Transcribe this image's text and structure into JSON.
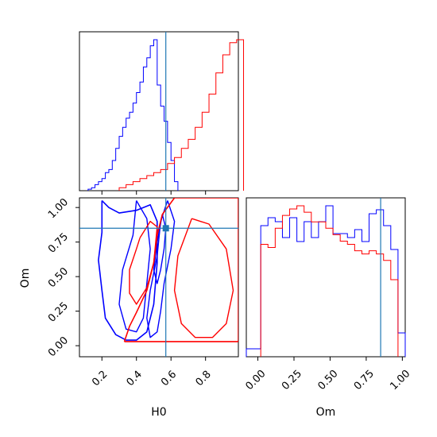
{
  "chart_data": {
    "type": "corner",
    "parameters": [
      "H0",
      "Om"
    ],
    "truth": {
      "H0": 0.57,
      "Om": 0.85
    },
    "colors": {
      "series_a": "#ff0000",
      "series_b": "#0000ff",
      "truth": "#1f77b4"
    },
    "panels": {
      "h0_hist": {
        "type": "histogram",
        "xlim": [
          0.07,
          0.99
        ],
        "x_ticks": [
          0.2,
          0.4,
          0.6,
          0.8
        ],
        "tick_labels_shown": false,
        "series": [
          {
            "color": "#0000ff",
            "bins": [
              0.12,
              0.14,
              0.16,
              0.18,
              0.2,
              0.22,
              0.24,
              0.26,
              0.28,
              0.3,
              0.32,
              0.34,
              0.36,
              0.38,
              0.4,
              0.42,
              0.44,
              0.46,
              0.48,
              0.5,
              0.52,
              0.54,
              0.56,
              0.58,
              0.6,
              0.62
            ],
            "counts": [
              1,
              2,
              4,
              6,
              8,
              12,
              14,
              20,
              28,
              36,
              42,
              48,
              52,
              58,
              65,
              72,
              82,
              88,
              96,
              100,
              70,
              56,
              46,
              32,
              20,
              6
            ]
          },
          {
            "color": "#ff0000",
            "bins": [
              0.3,
              0.34,
              0.38,
              0.42,
              0.46,
              0.5,
              0.54,
              0.58,
              0.62,
              0.66,
              0.7,
              0.74,
              0.78,
              0.82,
              0.86,
              0.9,
              0.94,
              0.98
            ],
            "counts": [
              2,
              4,
              6,
              8,
              10,
              12,
              14,
              18,
              22,
              28,
              34,
              42,
              52,
              64,
              78,
              90,
              98,
              100
            ]
          }
        ]
      },
      "om_hist": {
        "type": "histogram",
        "xlim": [
          -0.08,
          1.02
        ],
        "x_ticks": [
          0.0,
          0.25,
          0.5,
          0.75,
          1.0
        ],
        "x_tick_labels": [
          "0.00",
          "0.25",
          "0.50",
          "0.75",
          "1.00"
        ],
        "xlabel": "Om",
        "series": [
          {
            "color": "#0000ff",
            "bins": [
              -0.08,
              -0.03,
              0.02,
              0.07,
              0.12,
              0.17,
              0.22,
              0.27,
              0.32,
              0.37,
              0.42,
              0.47,
              0.52,
              0.57,
              0.62,
              0.67,
              0.72,
              0.77,
              0.82,
              0.87,
              0.92,
              0.97
            ],
            "counts": [
              4,
              4,
              66,
              70,
              68,
              60,
              70,
              58,
              68,
              60,
              68,
              76,
              62,
              62,
              60,
              64,
              58,
              72,
              74,
              66,
              54,
              12
            ]
          },
          {
            "color": "#ff0000",
            "bins": [
              0.02,
              0.07,
              0.12,
              0.17,
              0.22,
              0.27,
              0.32,
              0.37,
              0.42,
              0.47,
              0.52,
              0.57,
              0.62,
              0.67,
              0.72,
              0.77,
              0.82,
              0.87,
              0.92
            ],
            "counts": [
              70,
              68,
              80,
              88,
              92,
              94,
              90,
              84,
              84,
              80,
              76,
              72,
              70,
              66,
              64,
              66,
              64,
              60,
              48
            ]
          }
        ]
      },
      "joint": {
        "type": "contour",
        "xlim": [
          0.07,
          0.99
        ],
        "ylim": [
          -0.08,
          1.07
        ],
        "x_ticks": [
          0.2,
          0.4,
          0.6,
          0.8
        ],
        "x_tick_labels": [
          "0.2",
          "0.4",
          "0.6",
          "0.8"
        ],
        "y_ticks": [
          0.0,
          0.25,
          0.5,
          0.75,
          1.0
        ],
        "y_tick_labels": [
          "0.00",
          "0.25",
          "0.50",
          "0.75",
          "1.00"
        ],
        "xlabel": "H0",
        "ylabel": "Om",
        "contours": [
          {
            "color": "#0000ff",
            "level": "outer",
            "points": [
              [
                0.2,
                1.05
              ],
              [
                0.24,
                1.0
              ],
              [
                0.3,
                0.96
              ],
              [
                0.4,
                0.98
              ],
              [
                0.48,
                1.02
              ],
              [
                0.52,
                0.9
              ],
              [
                0.52,
                0.6
              ],
              [
                0.5,
                0.3
              ],
              [
                0.46,
                0.1
              ],
              [
                0.4,
                0.04
              ],
              [
                0.34,
                0.04
              ],
              [
                0.28,
                0.08
              ],
              [
                0.22,
                0.2
              ],
              [
                0.2,
                0.4
              ],
              [
                0.18,
                0.62
              ],
              [
                0.2,
                0.82
              ],
              [
                0.2,
                1.05
              ]
            ]
          },
          {
            "color": "#0000ff",
            "level": "middle",
            "points": [
              [
                0.4,
                1.05
              ],
              [
                0.46,
                0.92
              ],
              [
                0.48,
                0.7
              ],
              [
                0.46,
                0.45
              ],
              [
                0.44,
                0.2
              ],
              [
                0.4,
                0.1
              ],
              [
                0.34,
                0.12
              ],
              [
                0.3,
                0.3
              ],
              [
                0.32,
                0.55
              ],
              [
                0.38,
                0.8
              ],
              [
                0.4,
                1.05
              ]
            ]
          },
          {
            "color": "#0000ff",
            "level": "inner",
            "points": [
              [
                0.58,
                1.05
              ],
              [
                0.62,
                0.9
              ],
              [
                0.6,
                0.7
              ],
              [
                0.56,
                0.45
              ],
              [
                0.54,
                0.25
              ],
              [
                0.52,
                0.1
              ],
              [
                0.48,
                0.06
              ],
              [
                0.46,
                0.2
              ],
              [
                0.48,
                0.4
              ],
              [
                0.52,
                0.65
              ],
              [
                0.54,
                0.9
              ],
              [
                0.58,
                1.05
              ]
            ]
          },
          {
            "color": "#0000ff",
            "level": "core",
            "points": [
              [
                0.55,
                0.95
              ],
              [
                0.57,
                0.85
              ],
              [
                0.56,
                0.7
              ],
              [
                0.54,
                0.55
              ],
              [
                0.52,
                0.45
              ],
              [
                0.5,
                0.55
              ],
              [
                0.52,
                0.75
              ],
              [
                0.55,
                0.95
              ]
            ]
          },
          {
            "color": "#ff0000",
            "level": "outer",
            "points": [
              [
                0.33,
                0.03
              ],
              [
                0.99,
                0.03
              ],
              [
                0.99,
                1.07
              ],
              [
                0.62,
                1.07
              ],
              [
                0.55,
                0.95
              ],
              [
                0.52,
                0.8
              ],
              [
                0.5,
                0.6
              ],
              [
                0.46,
                0.4
              ],
              [
                0.4,
                0.24
              ],
              [
                0.36,
                0.14
              ],
              [
                0.33,
                0.03
              ]
            ]
          },
          {
            "color": "#ff0000",
            "level": "middle",
            "points": [
              [
                0.42,
                0.78
              ],
              [
                0.48,
                0.9
              ],
              [
                0.52,
                0.86
              ],
              [
                0.5,
                0.6
              ],
              [
                0.46,
                0.42
              ],
              [
                0.4,
                0.3
              ],
              [
                0.36,
                0.38
              ],
              [
                0.36,
                0.55
              ],
              [
                0.4,
                0.7
              ],
              [
                0.42,
                0.78
              ]
            ]
          },
          {
            "color": "#ff0000",
            "level": "inner",
            "points": [
              [
                0.72,
                0.92
              ],
              [
                0.82,
                0.88
              ],
              [
                0.92,
                0.7
              ],
              [
                0.96,
                0.4
              ],
              [
                0.92,
                0.16
              ],
              [
                0.84,
                0.06
              ],
              [
                0.74,
                0.06
              ],
              [
                0.66,
                0.16
              ],
              [
                0.62,
                0.4
              ],
              [
                0.64,
                0.65
              ],
              [
                0.72,
                0.92
              ]
            ]
          }
        ]
      }
    }
  }
}
